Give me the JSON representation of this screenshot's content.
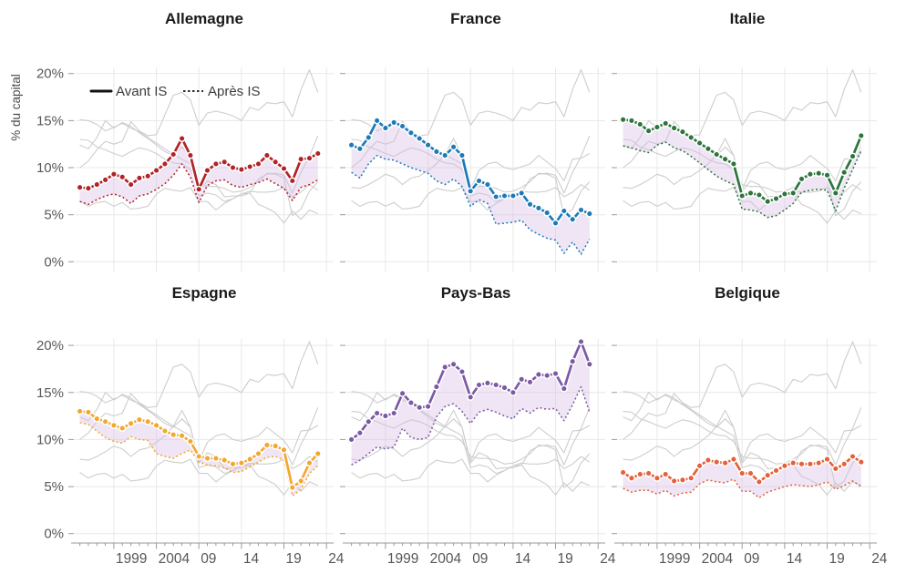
{
  "figure": {
    "background": "#ffffff",
    "ylabel": "% du capital",
    "legend": {
      "avant_label": "Avant IS",
      "apres_label": "Après IS"
    },
    "styles": {
      "band_fill": "rgba(214,187,229,0.38)",
      "ghost_color": "#cdcdcd",
      "grid_color": "#e8e8e8",
      "axis_color": "#9a9a9a",
      "tick_text_color": "#575757",
      "title_color": "#1a1a1a",
      "legend_line_color": "#111111"
    }
  },
  "chart_data": {
    "type": "line",
    "x": [
      1995,
      1996,
      1997,
      1998,
      1999,
      2000,
      2001,
      2002,
      2003,
      2004,
      2005,
      2006,
      2007,
      2008,
      2009,
      2010,
      2011,
      2012,
      2013,
      2014,
      2015,
      2016,
      2017,
      2018,
      2019,
      2020,
      2021,
      2022,
      2023
    ],
    "xlim": [
      1994.4,
      2025.2
    ],
    "ylim": [
      0,
      21.5
    ],
    "grid": true,
    "y_ticks": [
      {
        "value": 0,
        "label": "0%"
      },
      {
        "value": 5,
        "label": "5%"
      },
      {
        "value": 10,
        "label": "10%"
      },
      {
        "value": 15,
        "label": "15%"
      },
      {
        "value": 20,
        "label": "20%"
      }
    ],
    "x_ticks": [
      {
        "year": 1999,
        "label": "1999"
      },
      {
        "year": 2004,
        "label": "2004"
      },
      {
        "year": 2009,
        "label": "09"
      },
      {
        "year": 2014,
        "label": "14"
      },
      {
        "year": 2019,
        "label": "19"
      },
      {
        "year": 2024,
        "label": "24"
      }
    ],
    "series_labels": {
      "solid": "Avant IS",
      "dotted": "Après IS"
    },
    "panels": [
      {
        "title": "Allemagne",
        "color": "#b22327",
        "avant": [
          7.9,
          7.8,
          8.2,
          8.7,
          9.3,
          9.0,
          8.2,
          8.9,
          9.1,
          9.7,
          10.4,
          11.4,
          13.1,
          11.3,
          7.7,
          9.7,
          10.4,
          10.6,
          10.0,
          9.8,
          10.1,
          10.4,
          11.3,
          10.6,
          9.9,
          8.6,
          10.9,
          11.0,
          11.5
        ],
        "apres": [
          6.4,
          6.1,
          6.6,
          7.0,
          7.2,
          6.9,
          6.2,
          7.0,
          7.2,
          7.7,
          8.3,
          9.2,
          10.4,
          9.0,
          6.3,
          8.1,
          8.6,
          8.7,
          8.1,
          7.9,
          8.2,
          8.4,
          8.8,
          8.3,
          7.8,
          6.5,
          7.9,
          8.2,
          8.7
        ]
      },
      {
        "title": "France",
        "color": "#1c7ab8",
        "avant": [
          12.4,
          12.0,
          13.2,
          15.0,
          14.2,
          14.8,
          14.4,
          13.7,
          13.1,
          12.4,
          11.7,
          11.3,
          12.2,
          11.3,
          7.5,
          8.6,
          8.2,
          6.9,
          7.0,
          7.0,
          7.3,
          6.1,
          5.7,
          5.2,
          4.1,
          5.4,
          4.5,
          5.5,
          5.1
        ],
        "apres": [
          9.5,
          8.9,
          10.4,
          11.3,
          10.9,
          10.8,
          10.4,
          10.0,
          9.7,
          9.4,
          8.6,
          8.2,
          8.8,
          8.0,
          5.9,
          6.6,
          6.2,
          4.0,
          4.1,
          4.2,
          4.4,
          3.4,
          2.9,
          2.5,
          2.3,
          0.9,
          2.1,
          0.8,
          2.4
        ]
      },
      {
        "title": "Italie",
        "color": "#2c753c",
        "avant": [
          15.1,
          15.0,
          14.6,
          13.9,
          14.3,
          14.7,
          14.2,
          13.8,
          13.2,
          12.6,
          12.0,
          11.4,
          10.9,
          10.4,
          7.0,
          7.3,
          7.1,
          6.4,
          6.7,
          7.2,
          7.3,
          8.8,
          9.3,
          9.4,
          9.2,
          7.3,
          9.5,
          11.2,
          13.4
        ],
        "apres": [
          12.3,
          12.1,
          11.8,
          11.6,
          12.4,
          12.7,
          12.1,
          11.8,
          11.2,
          10.5,
          9.8,
          9.1,
          8.6,
          8.2,
          5.6,
          5.5,
          5.3,
          4.7,
          4.9,
          5.5,
          6.2,
          7.4,
          7.6,
          7.7,
          7.6,
          5.4,
          7.8,
          9.8,
          11.8
        ]
      },
      {
        "title": "Espagne",
        "color": "#f3a72f",
        "avant": [
          13.0,
          12.9,
          12.2,
          11.9,
          11.5,
          11.2,
          11.7,
          12.1,
          11.9,
          11.5,
          10.9,
          10.5,
          10.4,
          9.8,
          8.2,
          8.0,
          8.0,
          7.8,
          7.4,
          7.5,
          7.9,
          8.5,
          9.4,
          9.3,
          8.9,
          4.9,
          5.6,
          7.5,
          8.5
        ],
        "apres": [
          11.8,
          11.6,
          10.9,
          10.2,
          9.8,
          9.6,
          10.3,
          10.0,
          9.9,
          8.5,
          8.2,
          8.0,
          8.5,
          8.9,
          7.6,
          7.3,
          7.2,
          7.0,
          6.5,
          6.6,
          7.1,
          7.6,
          8.1,
          8.2,
          7.8,
          4.0,
          4.7,
          6.4,
          7.2
        ]
      },
      {
        "title": "Pays-Bas",
        "color": "#7c59a4",
        "avant": [
          10.0,
          10.7,
          11.9,
          12.8,
          12.5,
          12.8,
          14.9,
          13.9,
          13.4,
          13.5,
          15.6,
          17.7,
          18.0,
          17.2,
          14.5,
          15.8,
          16.0,
          15.8,
          15.5,
          15.0,
          16.4,
          16.1,
          16.9,
          16.8,
          17.0,
          15.4,
          18.3,
          20.4,
          18.0
        ],
        "apres": [
          7.3,
          7.8,
          8.5,
          9.2,
          9.0,
          9.2,
          11.2,
          10.2,
          10.0,
          10.2,
          12.4,
          13.5,
          13.8,
          13.0,
          11.7,
          12.9,
          13.2,
          12.9,
          12.5,
          12.2,
          13.3,
          12.8,
          13.4,
          13.2,
          13.3,
          12.0,
          13.7,
          15.6,
          12.9
        ]
      },
      {
        "title": "Belgique",
        "color": "#e3613b",
        "avant": [
          6.5,
          5.9,
          6.3,
          6.4,
          5.9,
          6.3,
          5.6,
          5.7,
          5.9,
          7.2,
          7.8,
          7.6,
          7.5,
          7.9,
          6.4,
          6.4,
          5.5,
          6.2,
          6.7,
          7.2,
          7.5,
          7.4,
          7.4,
          7.5,
          7.9,
          6.9,
          7.4,
          8.2,
          7.6
        ],
        "apres": [
          4.8,
          4.4,
          4.6,
          4.6,
          4.2,
          4.6,
          4.0,
          4.3,
          4.4,
          5.3,
          5.7,
          5.5,
          5.4,
          5.8,
          4.5,
          4.5,
          3.8,
          4.4,
          4.7,
          5.0,
          5.2,
          5.1,
          5.0,
          5.2,
          5.5,
          4.7,
          5.1,
          5.6,
          5.0
        ]
      }
    ]
  }
}
